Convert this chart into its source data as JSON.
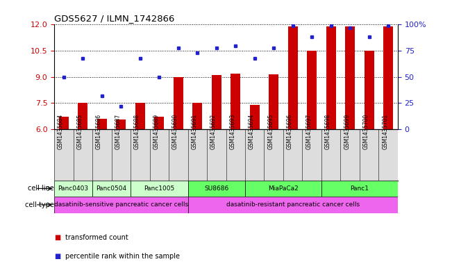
{
  "title": "GDS5627 / ILMN_1742866",
  "samples": [
    "GSM1435684",
    "GSM1435685",
    "GSM1435686",
    "GSM1435687",
    "GSM1435688",
    "GSM1435689",
    "GSM1435690",
    "GSM1435691",
    "GSM1435692",
    "GSM1435693",
    "GSM1435694",
    "GSM1435695",
    "GSM1435696",
    "GSM1435697",
    "GSM1435698",
    "GSM1435699",
    "GSM1435700",
    "GSM1435701"
  ],
  "transformed_count": [
    6.7,
    7.5,
    6.6,
    6.55,
    7.5,
    6.7,
    9.0,
    7.5,
    9.1,
    9.2,
    7.4,
    9.15,
    11.9,
    10.5,
    11.9,
    11.9,
    10.5,
    11.9
  ],
  "percentile_rank_pct": [
    50,
    68,
    32,
    22,
    68,
    50,
    78,
    73,
    78,
    80,
    68,
    78,
    99,
    88,
    99,
    97,
    88,
    99
  ],
  "ylim_left": [
    6,
    12
  ],
  "ylim_right": [
    0,
    100
  ],
  "yticks_left": [
    6,
    7.5,
    9,
    10.5,
    12
  ],
  "yticks_right": [
    0,
    25,
    50,
    75,
    100
  ],
  "bar_color": "#cc0000",
  "dot_color": "#2222cc",
  "bar_baseline": 6,
  "cell_lines": [
    {
      "label": "Panc0403",
      "start": 0,
      "end": 1,
      "color": "#ccffcc"
    },
    {
      "label": "Panc0504",
      "start": 2,
      "end": 3,
      "color": "#ccffcc"
    },
    {
      "label": "Panc1005",
      "start": 4,
      "end": 6,
      "color": "#ccffcc"
    },
    {
      "label": "SU8686",
      "start": 7,
      "end": 9,
      "color": "#66ff66"
    },
    {
      "label": "MiaPaCa2",
      "start": 10,
      "end": 13,
      "color": "#66ff66"
    },
    {
      "label": "Panc1",
      "start": 14,
      "end": 17,
      "color": "#66ff66"
    }
  ],
  "cell_types": [
    {
      "label": "dasatinib-sensitive pancreatic cancer cells",
      "start": 0,
      "end": 6,
      "color": "#ee66ee"
    },
    {
      "label": "dasatinib-resistant pancreatic cancer cells",
      "start": 7,
      "end": 17,
      "color": "#ee66ee"
    }
  ],
  "legend_bar_label": "transformed count",
  "legend_dot_label": "percentile rank within the sample",
  "bg_color": "#dddddd"
}
